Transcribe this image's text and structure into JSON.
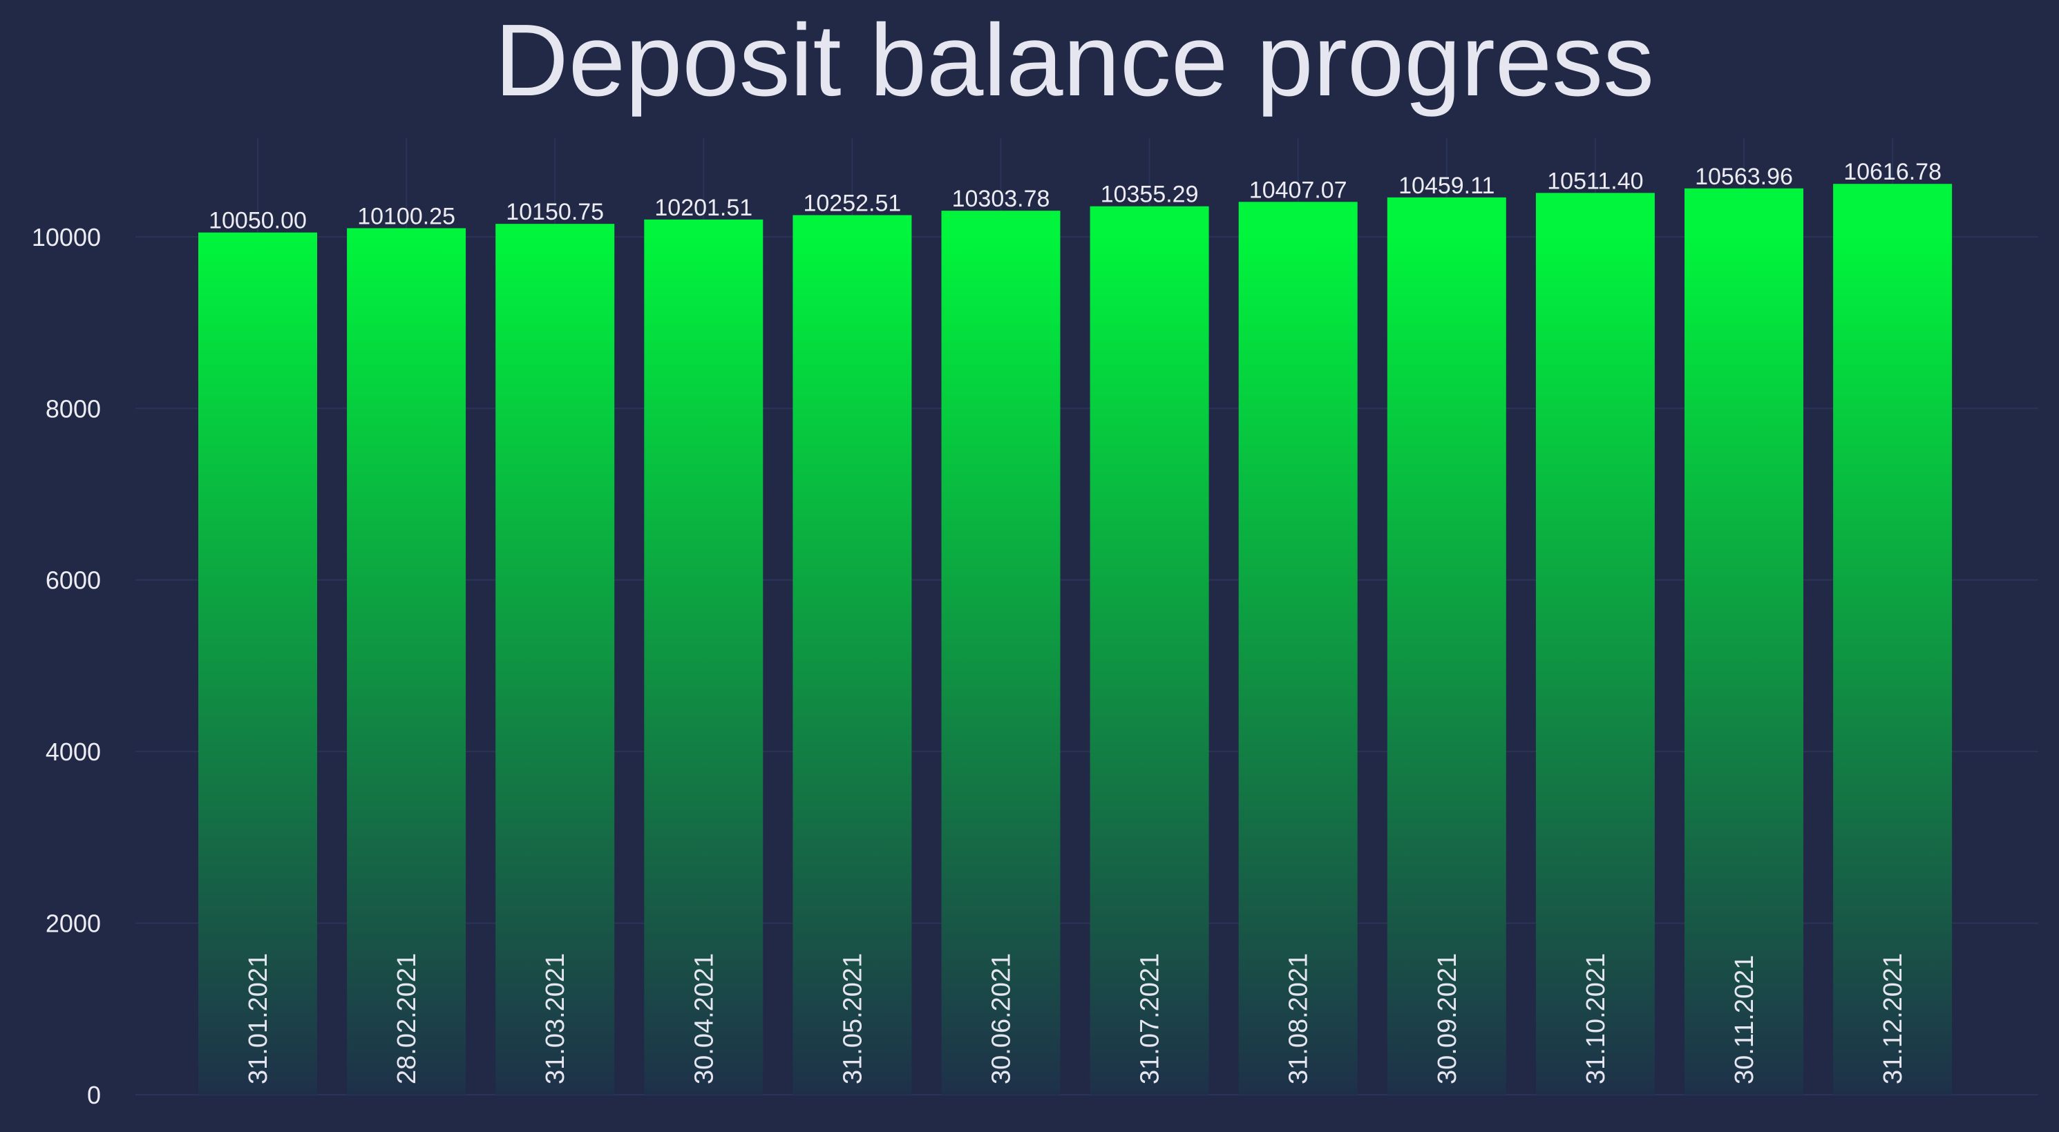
{
  "chart_data": {
    "type": "bar",
    "title": "Deposit balance progress",
    "xlabel": "",
    "ylabel": "",
    "categories": [
      "31.01.2021",
      "28.02.2021",
      "31.03.2021",
      "30.04.2021",
      "31.05.2021",
      "30.06.2021",
      "31.07.2021",
      "31.08.2021",
      "30.09.2021",
      "31.10.2021",
      "30.11.2021",
      "31.12.2021"
    ],
    "values": [
      10050.0,
      10100.25,
      10150.75,
      10201.51,
      10252.51,
      10303.78,
      10355.29,
      10407.07,
      10459.11,
      10511.4,
      10563.96,
      10616.78
    ],
    "value_labels": [
      "10050.00",
      "10100.25",
      "10150.75",
      "10201.51",
      "10252.51",
      "10303.78",
      "10355.29",
      "10407.07",
      "10459.11",
      "10511.40",
      "10563.96",
      "10616.78"
    ],
    "ylim": [
      0,
      11150
    ],
    "yticks": [
      0,
      2000,
      4000,
      6000,
      8000,
      10000
    ],
    "ytick_labels": [
      "0",
      "2000",
      "4000",
      "6000",
      "8000",
      "10000"
    ],
    "grid": true,
    "legend": "none",
    "colors": {
      "background": "#212946",
      "grid": "#2a3459",
      "bar_top": "#00f53c",
      "bar_bottom": "#1e3049",
      "text": "#e6e6f0"
    }
  }
}
